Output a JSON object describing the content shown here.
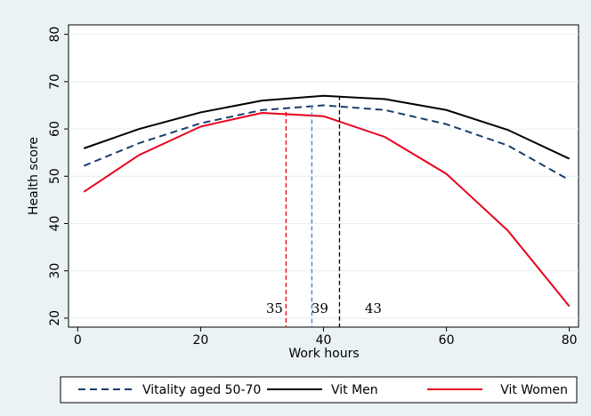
{
  "chart_data": {
    "type": "line",
    "x_label": "Work hours",
    "y_label": "Health score",
    "x": [
      1,
      10,
      20,
      30,
      40,
      50,
      60,
      70,
      80
    ],
    "series": [
      {
        "name": "Vitality aged 50-70",
        "color": "#1a3d6e",
        "dash": true,
        "values": [
          52.2,
          57.0,
          61.2,
          64.0,
          65.0,
          64.0,
          61.0,
          56.5,
          49.2
        ]
      },
      {
        "name": "Vit Men",
        "color": "#000000",
        "dash": false,
        "values": [
          55.9,
          60.0,
          63.5,
          66.0,
          67.0,
          66.3,
          64.0,
          59.8,
          53.7
        ]
      },
      {
        "name": "Vit Women",
        "color": "#e8001c",
        "dash": false,
        "values": [
          46.7,
          54.5,
          60.5,
          63.4,
          62.7,
          58.3,
          50.5,
          38.5,
          22.5
        ]
      }
    ],
    "annotations": [
      {
        "label": "35",
        "x": 33.9,
        "y": 63.6,
        "color": "#e8001c"
      },
      {
        "label": "39",
        "x": 38.1,
        "y": 65.0,
        "color": "#4a7fc1"
      },
      {
        "label": "43",
        "x": 42.6,
        "y": 67.0,
        "color": "#000000"
      }
    ],
    "xlim": [
      -1.5,
      81.5
    ],
    "xticks": [
      0,
      20,
      40,
      60,
      80
    ],
    "ylim": [
      18.1,
      82
    ],
    "yticks": [
      20,
      30,
      40,
      50,
      60,
      70,
      80
    ],
    "grid": true
  }
}
